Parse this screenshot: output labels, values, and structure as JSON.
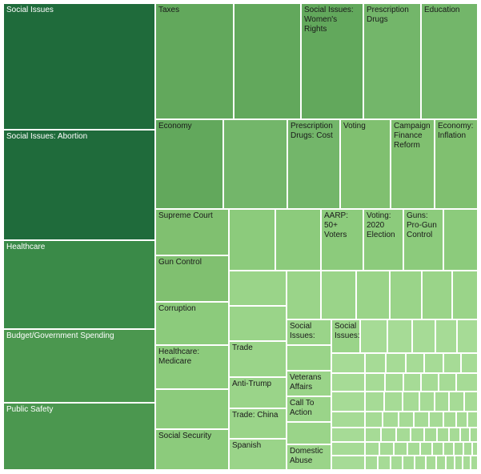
{
  "chart_data": {
    "type": "treemap",
    "title": "",
    "colors": {
      "darkest": "#1f6b3b",
      "dark": "#2f7d43",
      "mid_dark": "#3a8a48",
      "mid": "#4b974f",
      "medium": "#62a85c",
      "light_medium": "#73b66a",
      "light": "#80c070",
      "lighter": "#8ccb7c",
      "pale": "#9ad489",
      "palest": "#a6db96"
    },
    "labels": {
      "social_issues": "Social Issues",
      "social_issues_abortion": "Social Issues:  Abortion",
      "healthcare": "Healthcare",
      "budget_government_spending": "Budget/Government Spending",
      "public_safety": "Public Safety",
      "taxes": "Taxes",
      "social_issues_womens_rights": "Social Issues:\nWomen's\nRights",
      "prescription_drugs": "Prescription\nDrugs",
      "education": "Education",
      "economy": "Economy",
      "prescription_drugs_cost": "Prescription\nDrugs:  Cost",
      "voting": "Voting",
      "campaign_finance_reform": "Campaign\nFinance\nReform",
      "economy_inflation": "Economy:\nInflation",
      "supreme_court": "Supreme Court",
      "aarp_50_voters": "AARP:\n50+\nVoters",
      "voting_2020_election": "Voting:\n2020\nElection",
      "guns_pro_gun_control": "Guns:\nPro-Gun\nControl",
      "gun_control": "Gun Control",
      "corruption": "Corruption",
      "healthcare_medicare": "Healthcare:\nMedicare",
      "social_security": "Social Security",
      "trade": "Trade",
      "anti_trump": "Anti-Trump",
      "trade_china": "Trade:  China",
      "spanish": "Spanish",
      "social_issues_a": "Social\nIssues:",
      "social_issues_b": "Social\nIssues:",
      "veterans_affairs": "Veterans\nAffairs",
      "call_to_action": "Call To\nAction",
      "domestic_abuse": "Domestic\nAbuse"
    }
  }
}
